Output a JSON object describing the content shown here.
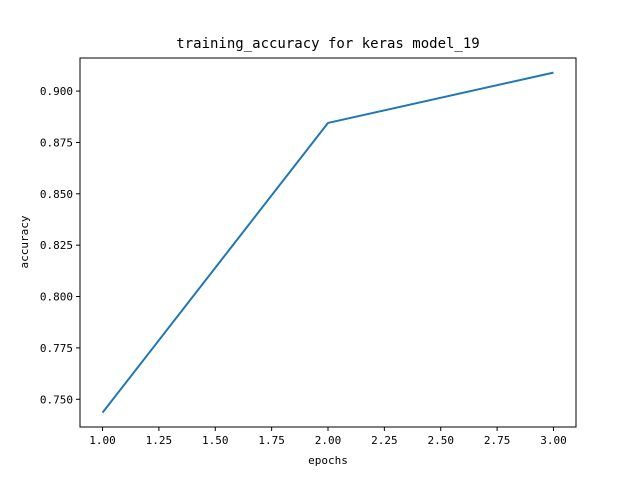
{
  "chart_data": {
    "type": "line",
    "title": "training_accuracy for keras model_19",
    "xlabel": "epochs",
    "ylabel": "accuracy",
    "x": [
      1.0,
      2.0,
      3.0
    ],
    "series": [
      {
        "values": [
          0.7435,
          0.8845,
          0.909
        ],
        "color": "#1f77b4"
      }
    ],
    "xlim": [
      0.9,
      3.1
    ],
    "ylim": [
      0.7365,
      0.9161
    ],
    "xticks": [
      "1.00",
      "1.25",
      "1.50",
      "1.75",
      "2.00",
      "2.25",
      "2.50",
      "2.75",
      "3.00"
    ],
    "xtick_values": [
      1.0,
      1.25,
      1.5,
      1.75,
      2.0,
      2.25,
      2.5,
      2.75,
      3.0
    ],
    "yticks": [
      "0.750",
      "0.775",
      "0.800",
      "0.825",
      "0.850",
      "0.875",
      "0.900"
    ],
    "ytick_values": [
      0.75,
      0.775,
      0.8,
      0.825,
      0.85,
      0.875,
      0.9
    ],
    "grid": false,
    "legend": "none"
  }
}
